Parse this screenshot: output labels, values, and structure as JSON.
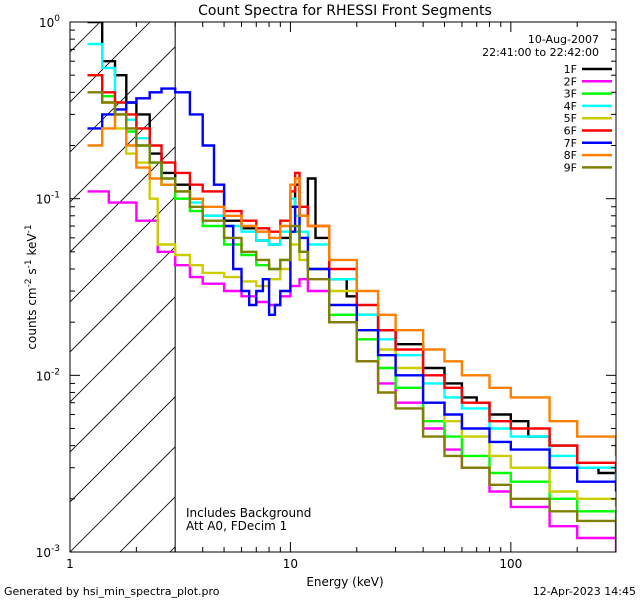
{
  "footer": {
    "generated_by": "Generated by hsi_min_spectra_plot.pro",
    "generated_on": "12-Apr-2023 14:45"
  },
  "chart_data": {
    "type": "line",
    "title": "Count Spectra for RHESSI Front Segments",
    "xlabel": "Energy (keV)",
    "ylabel_main": "counts cm",
    "ylabel_sup1": "-2",
    "ylabel_mid": " s",
    "ylabel_sup2": "-1",
    "ylabel_end": " keV",
    "ylabel_sup3": "-1",
    "x_scale": "log",
    "y_scale": "log",
    "xlim": [
      1,
      300
    ],
    "ylim": [
      0.001,
      1
    ],
    "x_ticks": [
      {
        "value": 1,
        "label": "1"
      },
      {
        "value": 10,
        "label": "10"
      },
      {
        "value": 100,
        "label": "100"
      }
    ],
    "y_ticks": [
      {
        "value": 1,
        "base": "10",
        "exp": "0"
      },
      {
        "value": 0.1,
        "base": "10",
        "exp": "-1"
      },
      {
        "value": 0.01,
        "base": "10",
        "exp": "-2"
      },
      {
        "value": 0.001,
        "base": "10",
        "exp": "-3"
      }
    ],
    "shaded_region": [
      1,
      3
    ],
    "date": "10-Aug-2007",
    "time_range": "22:41:00 to 22:42:00",
    "annotations": [
      "Includes Background",
      "Att A0, FDecim 1"
    ],
    "legend_position": "top-right",
    "series": [
      {
        "name": "1F",
        "color": "#000000",
        "values": [
          [
            1.2,
            1.0
          ],
          [
            1.4,
            0.6
          ],
          [
            1.6,
            0.5
          ],
          [
            1.8,
            0.35
          ],
          [
            2.0,
            0.3
          ],
          [
            2.3,
            0.18
          ],
          [
            2.6,
            0.14
          ],
          [
            3.0,
            0.12
          ],
          [
            3.5,
            0.1
          ],
          [
            4.0,
            0.08
          ],
          [
            5,
            0.075
          ],
          [
            6,
            0.068
          ],
          [
            7,
            0.058
          ],
          [
            8,
            0.055
          ],
          [
            9,
            0.06
          ],
          [
            10,
            0.09
          ],
          [
            10.5,
            0.12
          ],
          [
            11,
            0.08
          ],
          [
            12,
            0.13
          ],
          [
            13,
            0.06
          ],
          [
            15,
            0.035
          ],
          [
            18,
            0.028
          ],
          [
            20,
            0.022
          ],
          [
            25,
            0.018
          ],
          [
            30,
            0.015
          ],
          [
            40,
            0.011
          ],
          [
            50,
            0.009
          ],
          [
            60,
            0.0075
          ],
          [
            70,
            0.007
          ],
          [
            80,
            0.006
          ],
          [
            100,
            0.0055
          ],
          [
            120,
            0.0045
          ],
          [
            150,
            0.004
          ],
          [
            200,
            0.003
          ],
          [
            250,
            0.0028
          ],
          [
            300,
            0.0025
          ]
        ]
      },
      {
        "name": "2F",
        "color": "#ff00ff",
        "values": [
          [
            1.2,
            0.11
          ],
          [
            1.5,
            0.095
          ],
          [
            2.0,
            0.075
          ],
          [
            2.5,
            0.05
          ],
          [
            3.0,
            0.042
          ],
          [
            3.5,
            0.036
          ],
          [
            4.0,
            0.033
          ],
          [
            5.0,
            0.03
          ],
          [
            6.0,
            0.028
          ],
          [
            7,
            0.026
          ],
          [
            8,
            0.025
          ],
          [
            9,
            0.028
          ],
          [
            10,
            0.032
          ],
          [
            11,
            0.035
          ],
          [
            12,
            0.03
          ],
          [
            15,
            0.02
          ],
          [
            20,
            0.012
          ],
          [
            25,
            0.009
          ],
          [
            30,
            0.007
          ],
          [
            40,
            0.005
          ],
          [
            50,
            0.0038
          ],
          [
            60,
            0.003
          ],
          [
            80,
            0.0022
          ],
          [
            100,
            0.0018
          ],
          [
            150,
            0.0014
          ],
          [
            200,
            0.0012
          ],
          [
            300,
            0.001
          ]
        ]
      },
      {
        "name": "3F",
        "color": "#00ff00",
        "values": [
          [
            1.2,
            0.5
          ],
          [
            1.4,
            0.38
          ],
          [
            1.6,
            0.3
          ],
          [
            1.8,
            0.24
          ],
          [
            2.0,
            0.2
          ],
          [
            2.3,
            0.16
          ],
          [
            2.6,
            0.12
          ],
          [
            3.0,
            0.1
          ],
          [
            3.5,
            0.085
          ],
          [
            4,
            0.07
          ],
          [
            5,
            0.055
          ],
          [
            6,
            0.048
          ],
          [
            7,
            0.042
          ],
          [
            8,
            0.04
          ],
          [
            9,
            0.045
          ],
          [
            10,
            0.065
          ],
          [
            11,
            0.05
          ],
          [
            12,
            0.04
          ],
          [
            15,
            0.022
          ],
          [
            20,
            0.016
          ],
          [
            25,
            0.011
          ],
          [
            30,
            0.0085
          ],
          [
            40,
            0.0055
          ],
          [
            50,
            0.0045
          ],
          [
            60,
            0.0035
          ],
          [
            80,
            0.0028
          ],
          [
            100,
            0.0025
          ],
          [
            150,
            0.002
          ],
          [
            200,
            0.0017
          ],
          [
            300,
            0.0015
          ]
        ]
      },
      {
        "name": "4F",
        "color": "#00ffff",
        "values": [
          [
            1.2,
            0.75
          ],
          [
            1.4,
            0.55
          ],
          [
            1.6,
            0.35
          ],
          [
            1.8,
            0.28
          ],
          [
            2.0,
            0.22
          ],
          [
            2.3,
            0.16
          ],
          [
            2.6,
            0.13
          ],
          [
            3.0,
            0.11
          ],
          [
            3.5,
            0.095
          ],
          [
            4,
            0.08
          ],
          [
            5,
            0.07
          ],
          [
            6,
            0.065
          ],
          [
            7,
            0.058
          ],
          [
            8,
            0.055
          ],
          [
            9,
            0.065
          ],
          [
            10,
            0.1
          ],
          [
            10.5,
            0.08
          ],
          [
            11,
            0.065
          ],
          [
            12,
            0.055
          ],
          [
            15,
            0.035
          ],
          [
            20,
            0.022
          ],
          [
            25,
            0.016
          ],
          [
            30,
            0.013
          ],
          [
            40,
            0.009
          ],
          [
            50,
            0.0075
          ],
          [
            60,
            0.0065
          ],
          [
            80,
            0.005
          ],
          [
            100,
            0.0045
          ],
          [
            150,
            0.0035
          ],
          [
            200,
            0.003
          ],
          [
            300,
            0.0025
          ]
        ]
      },
      {
        "name": "5F",
        "color": "#cccc00",
        "values": [
          [
            1.2,
            0.5
          ],
          [
            1.4,
            0.35
          ],
          [
            1.6,
            0.25
          ],
          [
            1.8,
            0.18
          ],
          [
            2.0,
            0.16
          ],
          [
            2.3,
            0.1
          ],
          [
            2.5,
            0.055
          ],
          [
            3.0,
            0.048
          ],
          [
            3.5,
            0.042
          ],
          [
            4,
            0.038
          ],
          [
            5,
            0.036
          ],
          [
            6,
            0.034
          ],
          [
            7,
            0.032
          ],
          [
            8,
            0.035
          ],
          [
            9,
            0.04
          ],
          [
            10,
            0.055
          ],
          [
            11,
            0.045
          ],
          [
            12,
            0.04
          ],
          [
            15,
            0.03
          ],
          [
            20,
            0.018
          ],
          [
            25,
            0.014
          ],
          [
            30,
            0.011
          ],
          [
            40,
            0.007
          ],
          [
            50,
            0.0055
          ],
          [
            60,
            0.0045
          ],
          [
            80,
            0.0035
          ],
          [
            100,
            0.003
          ],
          [
            150,
            0.0022
          ],
          [
            200,
            0.002
          ],
          [
            300,
            0.0018
          ]
        ]
      },
      {
        "name": "6F",
        "color": "#ff0000",
        "values": [
          [
            1.2,
            0.5
          ],
          [
            1.4,
            0.4
          ],
          [
            1.6,
            0.35
          ],
          [
            1.8,
            0.3
          ],
          [
            2.0,
            0.25
          ],
          [
            2.3,
            0.2
          ],
          [
            2.6,
            0.16
          ],
          [
            3.0,
            0.14
          ],
          [
            3.5,
            0.12
          ],
          [
            4,
            0.11
          ],
          [
            5,
            0.085
          ],
          [
            6,
            0.075
          ],
          [
            7,
            0.068
          ],
          [
            8,
            0.065
          ],
          [
            9,
            0.075
          ],
          [
            10,
            0.11
          ],
          [
            10.5,
            0.14
          ],
          [
            11,
            0.09
          ],
          [
            12,
            0.07
          ],
          [
            15,
            0.04
          ],
          [
            20,
            0.025
          ],
          [
            25,
            0.018
          ],
          [
            30,
            0.014
          ],
          [
            40,
            0.01
          ],
          [
            50,
            0.0085
          ],
          [
            60,
            0.007
          ],
          [
            80,
            0.0055
          ],
          [
            100,
            0.005
          ],
          [
            150,
            0.004
          ],
          [
            200,
            0.0032
          ],
          [
            300,
            0.0028
          ]
        ]
      },
      {
        "name": "7F",
        "color": "#0000ff",
        "values": [
          [
            1.2,
            0.25
          ],
          [
            1.4,
            0.3
          ],
          [
            1.6,
            0.32
          ],
          [
            1.8,
            0.35
          ],
          [
            2.0,
            0.37
          ],
          [
            2.3,
            0.4
          ],
          [
            2.6,
            0.42
          ],
          [
            3.0,
            0.4
          ],
          [
            3.5,
            0.3
          ],
          [
            4,
            0.2
          ],
          [
            4.5,
            0.12
          ],
          [
            5,
            0.07
          ],
          [
            5.5,
            0.04
          ],
          [
            6,
            0.03
          ],
          [
            6.5,
            0.025
          ],
          [
            7,
            0.03
          ],
          [
            7.5,
            0.035
          ],
          [
            8,
            0.022
          ],
          [
            8.5,
            0.025
          ],
          [
            9,
            0.03
          ],
          [
            10,
            0.065
          ],
          [
            10.5,
            0.09
          ],
          [
            11,
            0.06
          ],
          [
            12,
            0.04
          ],
          [
            15,
            0.025
          ],
          [
            20,
            0.018
          ],
          [
            25,
            0.013
          ],
          [
            30,
            0.01
          ],
          [
            40,
            0.007
          ],
          [
            50,
            0.006
          ],
          [
            60,
            0.005
          ],
          [
            80,
            0.0042
          ],
          [
            100,
            0.0038
          ],
          [
            150,
            0.003
          ],
          [
            200,
            0.0025
          ],
          [
            300,
            0.0022
          ]
        ]
      },
      {
        "name": "8F",
        "color": "#ff8000",
        "values": [
          [
            1.2,
            0.2
          ],
          [
            1.4,
            0.25
          ],
          [
            1.6,
            0.3
          ],
          [
            1.8,
            0.2
          ],
          [
            2.0,
            0.15
          ],
          [
            2.3,
            0.13
          ],
          [
            2.6,
            0.12
          ],
          [
            3.0,
            0.11
          ],
          [
            3.5,
            0.1
          ],
          [
            4,
            0.09
          ],
          [
            5,
            0.08
          ],
          [
            6,
            0.07
          ],
          [
            7,
            0.065
          ],
          [
            8,
            0.06
          ],
          [
            9,
            0.07
          ],
          [
            10,
            0.12
          ],
          [
            10.5,
            0.13
          ],
          [
            11,
            0.08
          ],
          [
            12,
            0.07
          ],
          [
            15,
            0.045
          ],
          [
            20,
            0.03
          ],
          [
            25,
            0.022
          ],
          [
            30,
            0.018
          ],
          [
            40,
            0.014
          ],
          [
            50,
            0.012
          ],
          [
            60,
            0.01
          ],
          [
            80,
            0.0085
          ],
          [
            100,
            0.0075
          ],
          [
            150,
            0.0055
          ],
          [
            200,
            0.0045
          ],
          [
            300,
            0.0035
          ]
        ]
      },
      {
        "name": "9F",
        "color": "#808000",
        "values": [
          [
            1.2,
            0.4
          ],
          [
            1.4,
            0.35
          ],
          [
            1.6,
            0.3
          ],
          [
            1.8,
            0.25
          ],
          [
            2.0,
            0.2
          ],
          [
            2.3,
            0.16
          ],
          [
            2.6,
            0.13
          ],
          [
            3.0,
            0.11
          ],
          [
            3.5,
            0.09
          ],
          [
            4,
            0.075
          ],
          [
            5,
            0.06
          ],
          [
            6,
            0.05
          ],
          [
            7,
            0.045
          ],
          [
            8,
            0.04
          ],
          [
            9,
            0.045
          ],
          [
            10,
            0.07
          ],
          [
            11,
            0.05
          ],
          [
            12,
            0.035
          ],
          [
            15,
            0.02
          ],
          [
            20,
            0.012
          ],
          [
            25,
            0.008
          ],
          [
            30,
            0.0065
          ],
          [
            40,
            0.0045
          ],
          [
            50,
            0.0035
          ],
          [
            60,
            0.003
          ],
          [
            80,
            0.0024
          ],
          [
            100,
            0.002
          ],
          [
            150,
            0.0017
          ],
          [
            200,
            0.0015
          ],
          [
            300,
            0.0012
          ]
        ]
      }
    ]
  }
}
